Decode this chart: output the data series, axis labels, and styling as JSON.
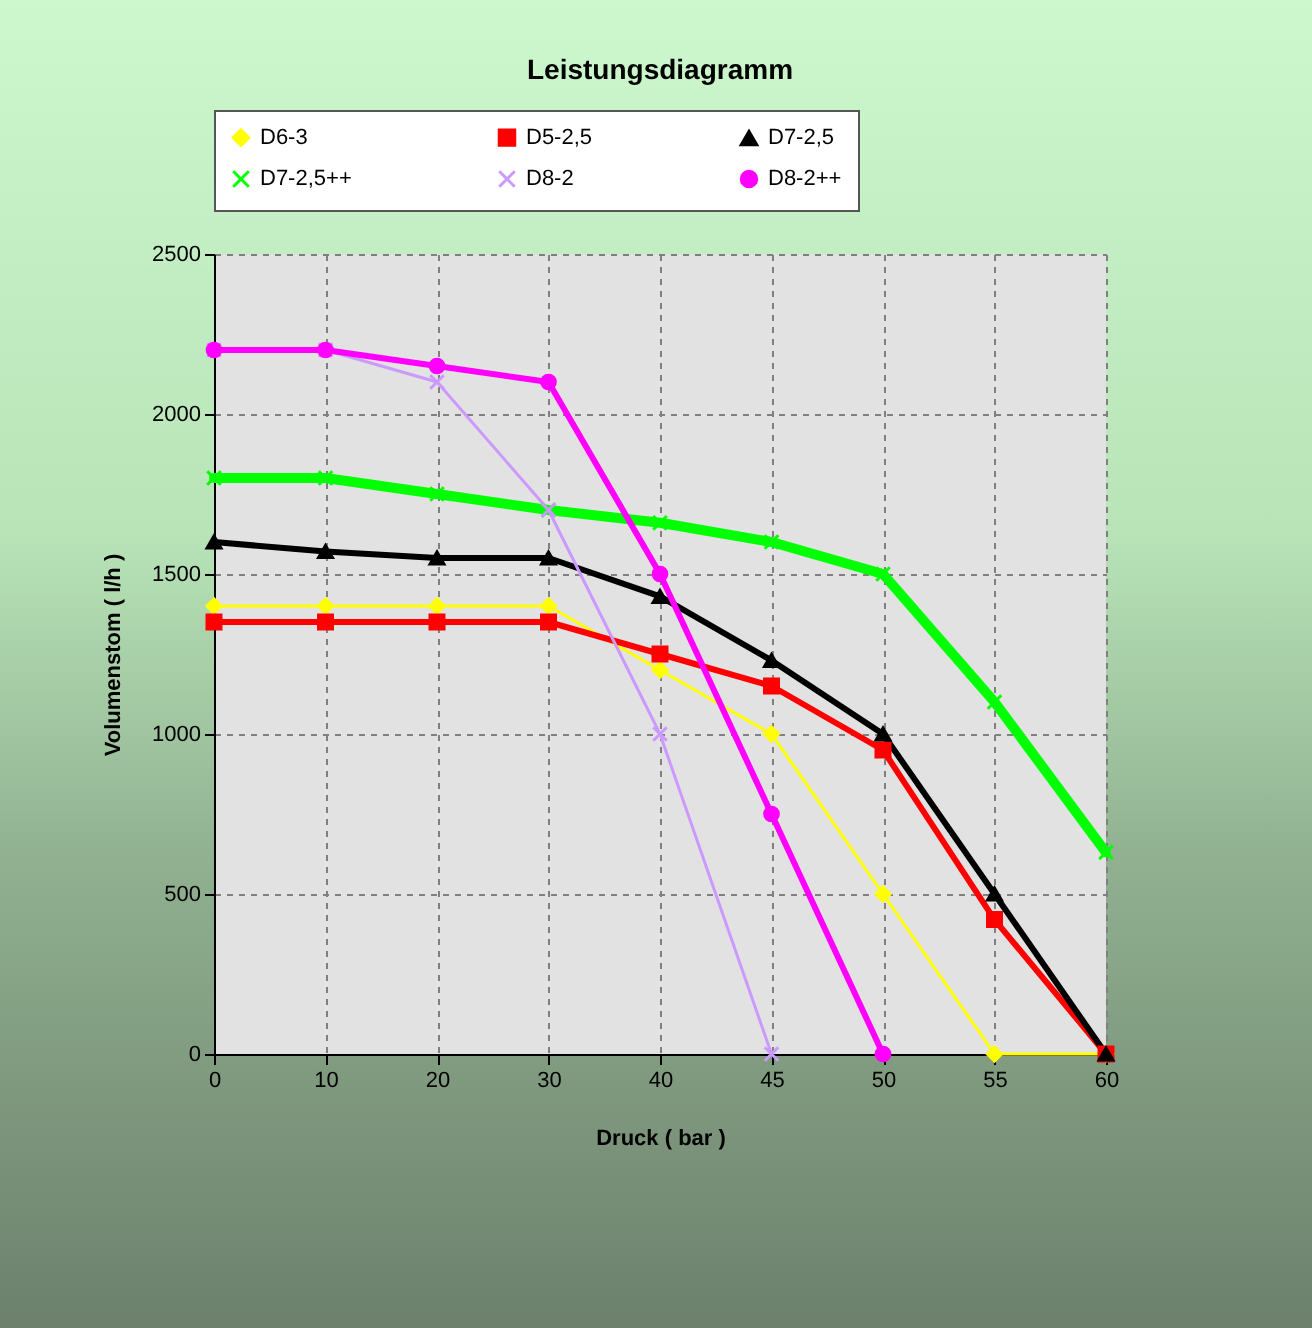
{
  "chart_data": {
    "type": "line",
    "title": "Leistungsdiagramm",
    "xlabel": "Druck ( bar )",
    "ylabel": "Volumenstom ( l/h )",
    "categories": [
      "0",
      "10",
      "20",
      "30",
      "40",
      "45",
      "50",
      "55",
      "60"
    ],
    "ylim": [
      0,
      2500
    ],
    "yticks": [
      0,
      500,
      1000,
      1500,
      2000,
      2500
    ],
    "grid": true,
    "legend": "top",
    "series": [
      {
        "name": "D6-3",
        "color": "#ffff00",
        "marker": "diamond",
        "values": [
          1400,
          1400,
          1400,
          1400,
          1200,
          1000,
          500,
          0,
          0
        ]
      },
      {
        "name": "D5-2,5",
        "color": "#ff0000",
        "marker": "square",
        "values": [
          1350,
          1350,
          1350,
          1350,
          1250,
          1150,
          950,
          420,
          0
        ]
      },
      {
        "name": "D7-2,5",
        "color": "#000000",
        "marker": "triangle",
        "values": [
          1600,
          1570,
          1550,
          1550,
          1430,
          1230,
          1000,
          500,
          0
        ]
      },
      {
        "name": "D7-2,5++",
        "color": "#00ff00",
        "marker": "cross",
        "values": [
          1800,
          1800,
          1750,
          1700,
          1660,
          1600,
          1500,
          1100,
          630
        ]
      },
      {
        "name": "D8-2",
        "color": "#cc99ff",
        "marker": "cross",
        "values": [
          2200,
          2200,
          2100,
          1700,
          1000,
          0,
          null,
          null,
          null
        ]
      },
      {
        "name": "D8-2++",
        "color": "#ff00ff",
        "marker": "circle",
        "values": [
          2200,
          2200,
          2150,
          2100,
          1500,
          750,
          0,
          null,
          null
        ]
      }
    ]
  }
}
